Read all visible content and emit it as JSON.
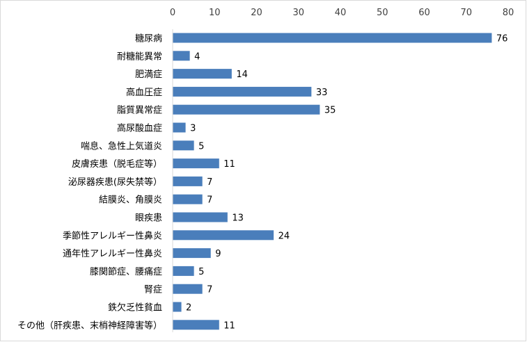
{
  "chart_data": {
    "type": "bar",
    "orientation": "horizontal",
    "title": "",
    "xlabel": "",
    "ylabel": "",
    "xlim": [
      0,
      80
    ],
    "x_ticks": [
      0,
      10,
      20,
      30,
      40,
      50,
      60,
      70,
      80
    ],
    "x_axis_position": "top",
    "grid": false,
    "legend": "none",
    "bar_color": "#4a7ebb",
    "categories": [
      "糖尿病",
      "耐糖能異常",
      "肥満症",
      "高血圧症",
      "脂質異常症",
      "高尿酸血症",
      "喘息、急性上気道炎",
      "皮膚疾患（脱毛症等）",
      "泌尿器疾患(尿失禁等）",
      "結膜炎、角膜炎",
      "眼疾患",
      "季節性アレルギー性鼻炎",
      "通年性アレルギー性鼻炎",
      "膝関節症、腰痛症",
      "腎症",
      "鉄欠乏性貧血",
      "その他（肝疾患、末梢神経障害等）"
    ],
    "values": [
      76,
      4,
      14,
      33,
      35,
      3,
      5,
      11,
      7,
      7,
      13,
      24,
      9,
      5,
      7,
      2,
      11
    ]
  }
}
